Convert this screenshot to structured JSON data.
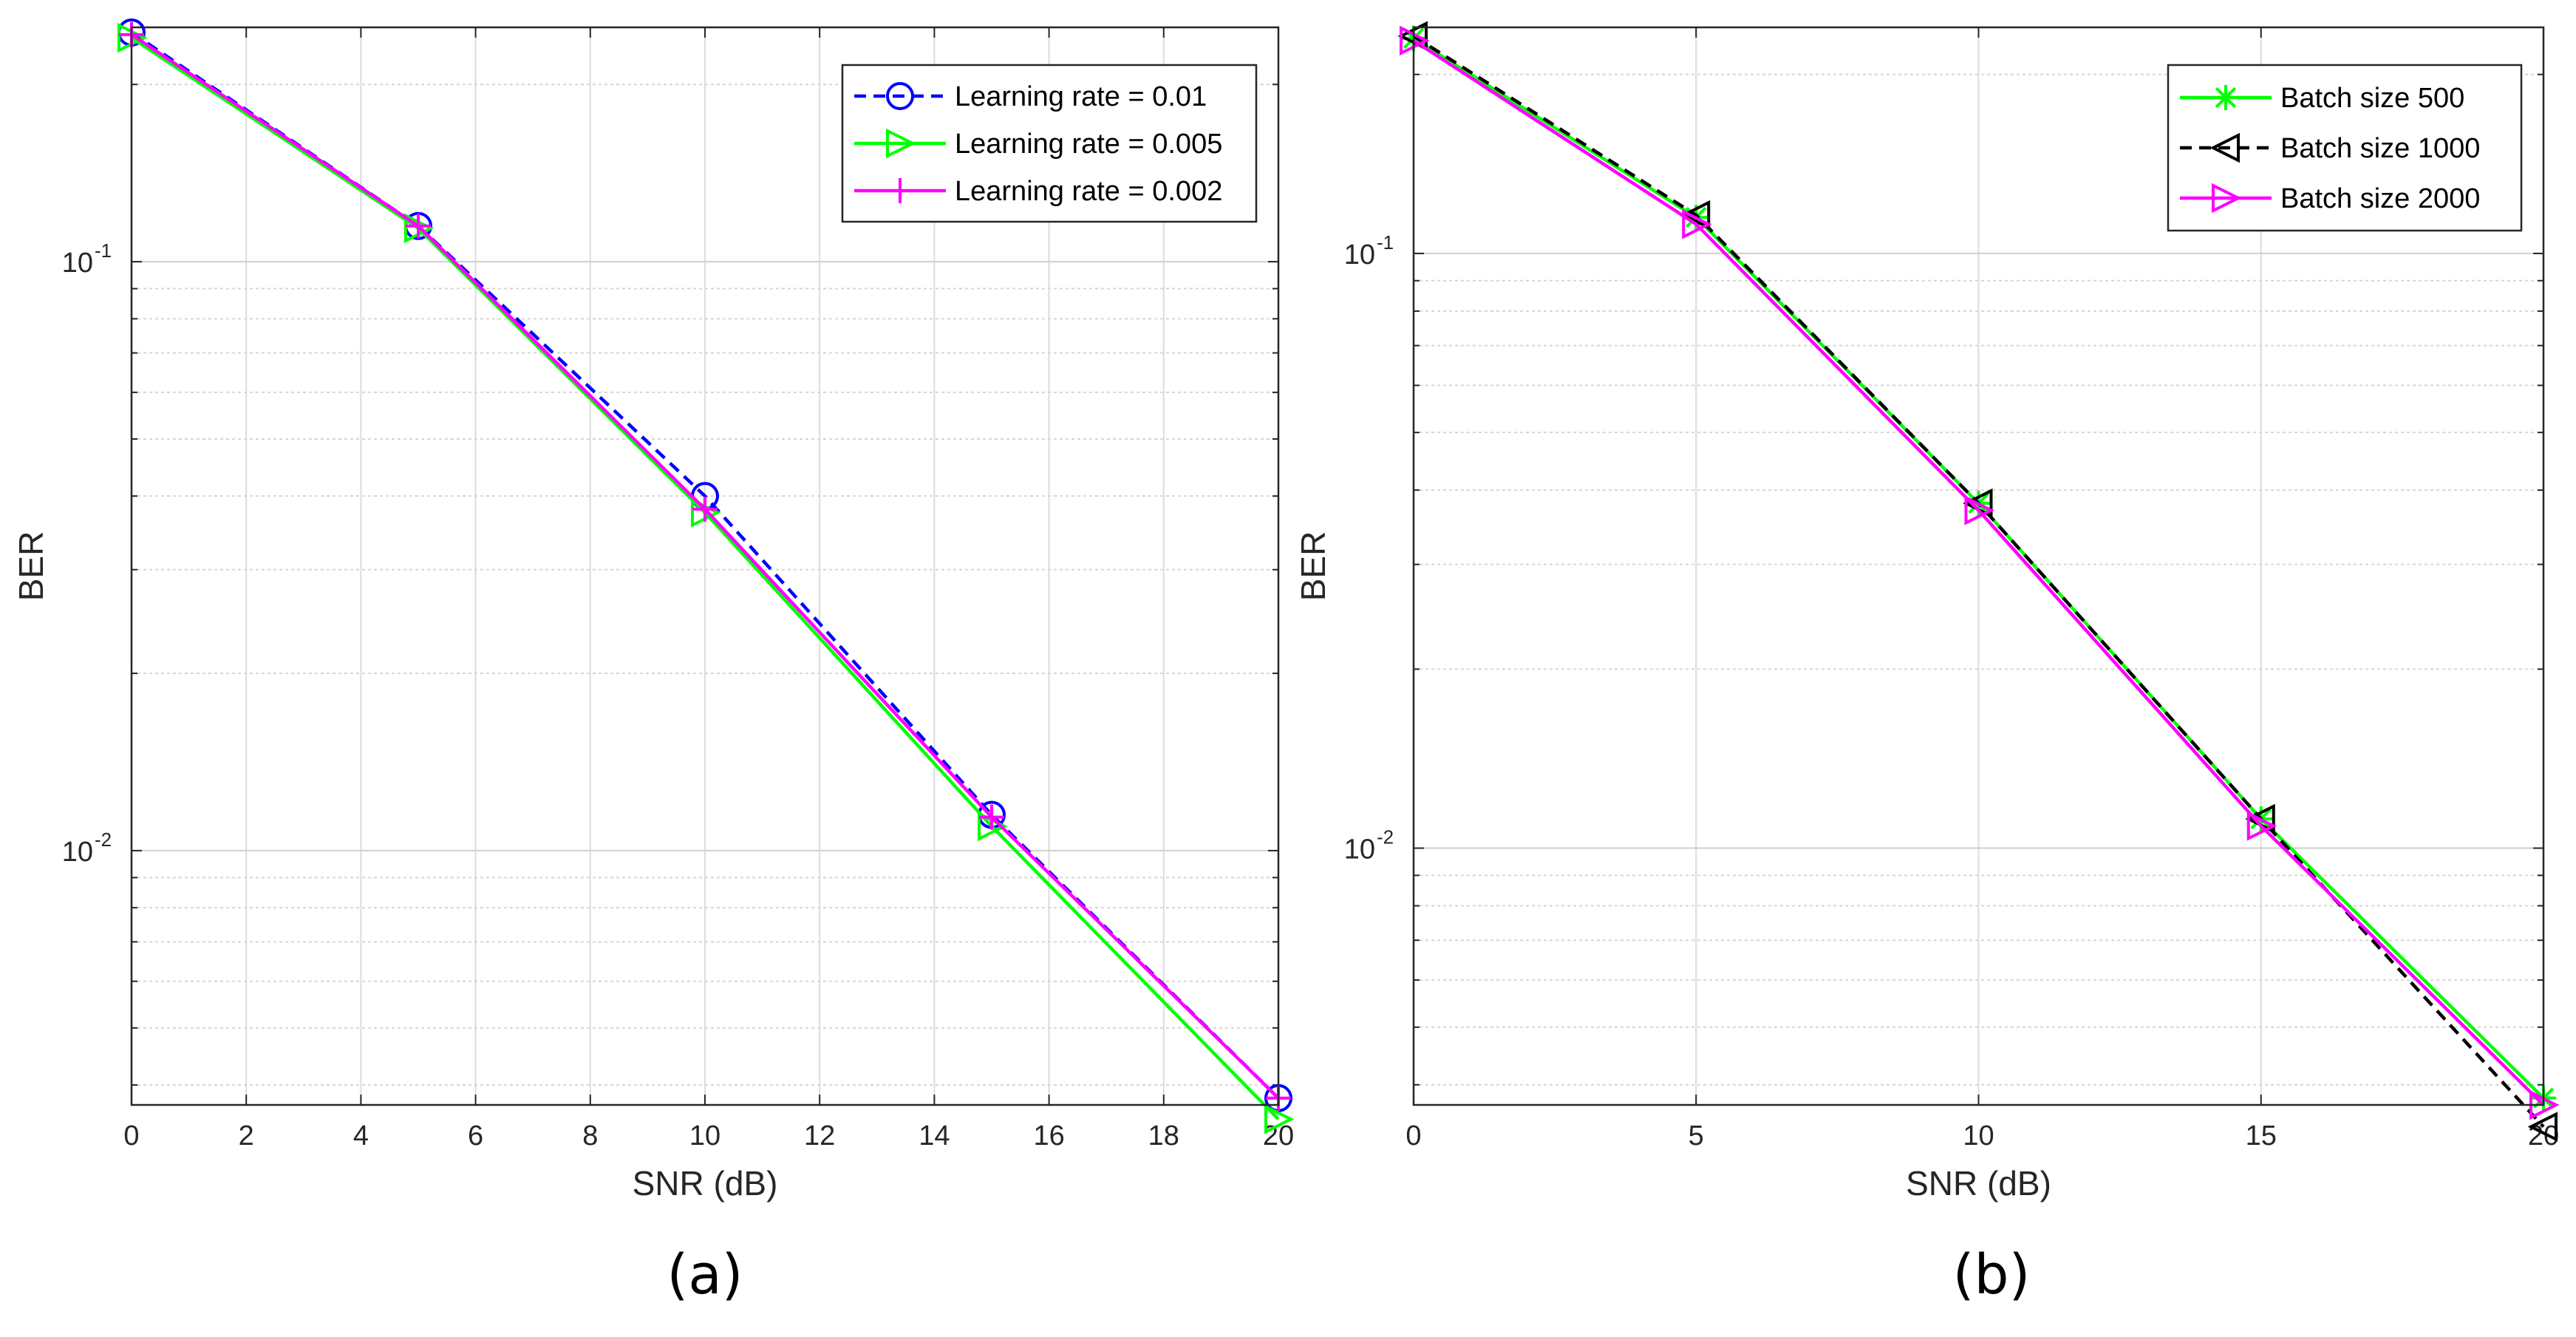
{
  "chart_data": [
    {
      "type": "line",
      "panel_label": "(a)",
      "xlabel": "SNR (dB)",
      "ylabel": "BER",
      "yscale": "log",
      "xlim": [
        0,
        20
      ],
      "ylim": [
        0.0037,
        0.25
      ],
      "xticks": [
        "0",
        "2",
        "4",
        "6",
        "8",
        "10",
        "12",
        "14",
        "16",
        "18",
        "20"
      ],
      "yticks": [
        {
          "value": 0.1,
          "base": "10",
          "exp": "-1"
        },
        {
          "value": 0.01,
          "base": "10",
          "exp": "-2"
        }
      ],
      "grid": true,
      "legend_position": "top-right",
      "series": [
        {
          "name": "Learning rate = 0.01",
          "color": "#0000ff",
          "line": "dashed",
          "marker": "circle",
          "x": [
            0,
            5,
            10,
            15,
            20
          ],
          "values": [
            0.245,
            0.115,
            0.04,
            0.0115,
            0.0038
          ]
        },
        {
          "name": "Learning rate = 0.005",
          "color": "#00ff00",
          "line": "solid",
          "marker": "triangle-right",
          "x": [
            0,
            5,
            10,
            15,
            20
          ],
          "values": [
            0.24,
            0.114,
            0.0375,
            0.011,
            0.0035
          ]
        },
        {
          "name": "Learning rate = 0.002",
          "color": "#ff00ff",
          "line": "solid",
          "marker": "plus",
          "x": [
            0,
            5,
            10,
            15,
            20
          ],
          "values": [
            0.243,
            0.115,
            0.038,
            0.0114,
            0.0038
          ]
        }
      ]
    },
    {
      "type": "line",
      "panel_label": "(b)",
      "xlabel": "SNR (dB)",
      "ylabel": "BER",
      "yscale": "log",
      "xlim": [
        0,
        20
      ],
      "ylim": [
        0.0037,
        0.24
      ],
      "xticks": [
        "0",
        "5",
        "10",
        "15",
        "20"
      ],
      "yticks": [
        {
          "value": 0.1,
          "base": "10",
          "exp": "-1"
        },
        {
          "value": 0.01,
          "base": "10",
          "exp": "-2"
        }
      ],
      "grid": true,
      "legend_position": "top-right",
      "series": [
        {
          "name": "Batch size 500",
          "color": "#00ff00",
          "line": "solid",
          "marker": "asterisk",
          "x": [
            0,
            5,
            10,
            15,
            20
          ],
          "values": [
            0.23,
            0.115,
            0.038,
            0.0112,
            0.0038
          ]
        },
        {
          "name": "Batch size 1000",
          "color": "#000000",
          "line": "dashed",
          "marker": "triangle-left",
          "x": [
            0,
            5,
            10,
            15,
            20
          ],
          "values": [
            0.232,
            0.116,
            0.038,
            0.0112,
            0.0034
          ]
        },
        {
          "name": "Batch size 2000",
          "color": "#ff00ff",
          "line": "solid",
          "marker": "triangle-right",
          "x": [
            0,
            5,
            10,
            15,
            20
          ],
          "values": [
            0.228,
            0.112,
            0.037,
            0.0109,
            0.0037
          ]
        }
      ]
    }
  ]
}
